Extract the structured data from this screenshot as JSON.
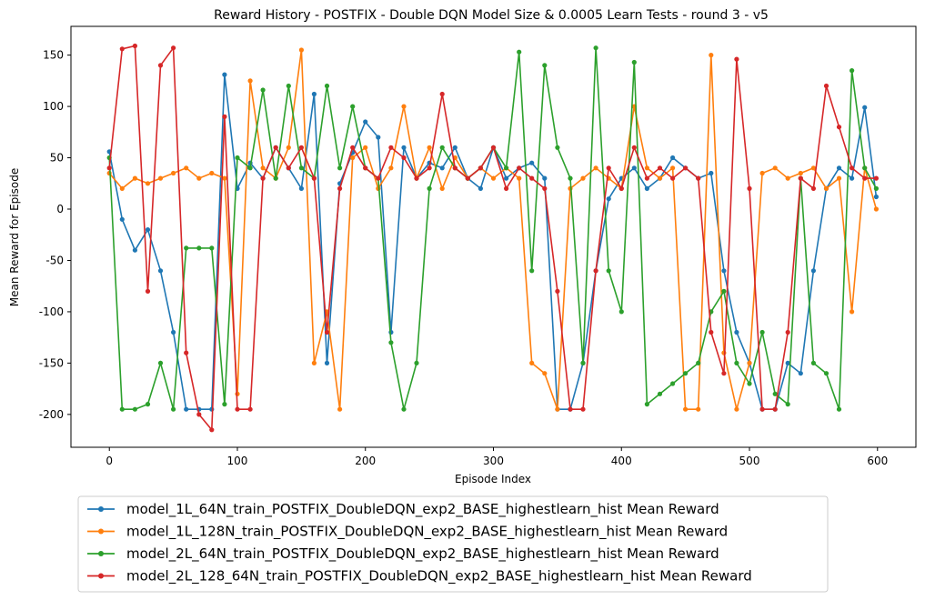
{
  "chart_data": {
    "type": "line",
    "title": "Reward History - POSTFIX - Double DQN Model Size & 0.0005 Learn Tests - round 3 - v5",
    "xlabel": "Episode Index",
    "ylabel": "Mean Reward for Episode",
    "xlim": [
      -30,
      630
    ],
    "ylim": [
      -232,
      178
    ],
    "xticks": [
      0,
      100,
      200,
      300,
      400,
      500,
      600
    ],
    "yticks": [
      -200,
      -150,
      -100,
      -50,
      0,
      50,
      100,
      150
    ],
    "grid": false,
    "legend_position": "below",
    "x": [
      0,
      10,
      20,
      30,
      40,
      50,
      60,
      70,
      80,
      90,
      100,
      110,
      120,
      130,
      140,
      150,
      160,
      170,
      180,
      190,
      200,
      210,
      220,
      230,
      240,
      250,
      260,
      270,
      280,
      290,
      300,
      310,
      320,
      330,
      340,
      350,
      360,
      370,
      380,
      390,
      400,
      410,
      420,
      430,
      440,
      450,
      460,
      470,
      480,
      490,
      500,
      510,
      520,
      530,
      540,
      550,
      560,
      570,
      580,
      590,
      599
    ],
    "series": [
      {
        "name": "model_1L_64N_train_POSTFIX_DoubleDQN_exp2_BASE_highestlearn_hist Mean Reward",
        "color": "#1f77b4",
        "values": [
          56,
          -10,
          -40,
          -20,
          -60,
          -120,
          -195,
          -195,
          -195,
          131,
          20,
          45,
          30,
          60,
          40,
          20,
          112,
          -150,
          25,
          55,
          85,
          70,
          -120,
          60,
          30,
          45,
          40,
          60,
          30,
          20,
          60,
          30,
          40,
          45,
          30,
          -195,
          -195,
          -150,
          -60,
          10,
          30,
          40,
          20,
          30,
          50,
          40,
          30,
          35,
          -60,
          -120,
          -150,
          -195,
          -195,
          -150,
          -160,
          -60,
          20,
          40,
          30,
          99,
          12
        ]
      },
      {
        "name": "model_1L_128N_train_POSTFIX_DoubleDQN_exp2_BASE_highestlearn_hist Mean Reward",
        "color": "#ff7f0e",
        "values": [
          35,
          20,
          30,
          25,
          30,
          35,
          40,
          30,
          35,
          30,
          -180,
          125,
          40,
          30,
          60,
          155,
          -150,
          -100,
          -195,
          50,
          60,
          20,
          40,
          100,
          30,
          60,
          20,
          50,
          30,
          40,
          30,
          40,
          30,
          -150,
          -160,
          -195,
          20,
          30,
          40,
          30,
          20,
          100,
          40,
          30,
          40,
          -195,
          -195,
          150,
          -140,
          -195,
          -150,
          35,
          40,
          30,
          35,
          40,
          20,
          30,
          -100,
          40,
          0
        ]
      },
      {
        "name": "model_2L_64N_train_POSTFIX_DoubleDQN_exp2_BASE_highestlearn_hist Mean Reward",
        "color": "#2ca02c",
        "values": [
          50,
          -195,
          -195,
          -190,
          -150,
          -195,
          -38,
          -38,
          -38,
          -190,
          50,
          40,
          116,
          30,
          120,
          40,
          30,
          120,
          40,
          100,
          40,
          30,
          -130,
          -195,
          -150,
          20,
          60,
          40,
          30,
          40,
          60,
          40,
          153,
          -60,
          140,
          60,
          30,
          -150,
          157,
          -60,
          -100,
          143,
          -190,
          -180,
          -170,
          -160,
          -150,
          -100,
          -80,
          -150,
          -170,
          -120,
          -180,
          -190,
          30,
          -150,
          -160,
          -195,
          135,
          40,
          20
        ]
      },
      {
        "name": "model_2L_128_64N_train_POSTFIX_DoubleDQN_exp2_BASE_highestlearn_hist Mean Reward",
        "color": "#d62728",
        "values": [
          40,
          156,
          159,
          -80,
          140,
          157,
          -140,
          -200,
          -215,
          90,
          -195,
          -195,
          30,
          60,
          40,
          60,
          30,
          -120,
          20,
          60,
          40,
          30,
          60,
          50,
          30,
          40,
          112,
          40,
          30,
          40,
          60,
          20,
          40,
          30,
          20,
          -80,
          -195,
          -195,
          -60,
          40,
          20,
          60,
          30,
          40,
          30,
          40,
          30,
          -120,
          -160,
          146,
          20,
          -195,
          -195,
          -120,
          30,
          20,
          120,
          80,
          40,
          30,
          30
        ]
      }
    ]
  }
}
